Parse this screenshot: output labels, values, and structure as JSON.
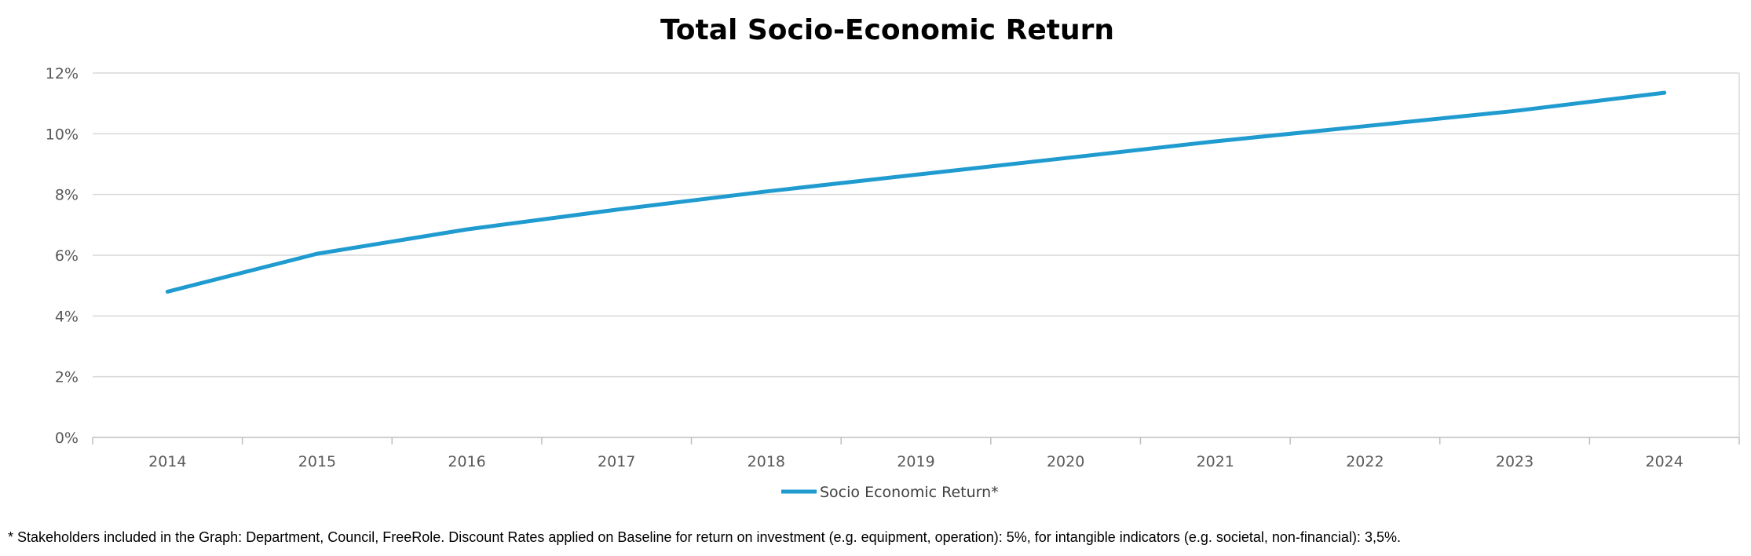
{
  "chart_data": {
    "type": "line",
    "title": "Total Socio-Economic Return",
    "categories": [
      "2014",
      "2015",
      "2016",
      "2017",
      "2018",
      "2019",
      "2020",
      "2021",
      "2022",
      "2023",
      "2024"
    ],
    "series": [
      {
        "name": "Socio Economic Return*",
        "color": "#1f9bcf",
        "values": [
          4.8,
          6.05,
          6.85,
          7.5,
          8.1,
          8.65,
          9.2,
          9.75,
          10.25,
          10.75,
          11.35
        ]
      }
    ],
    "ylim": [
      0,
      12
    ],
    "yticks": [
      "0%",
      "2%",
      "4%",
      "6%",
      "8%",
      "10%",
      "12%"
    ],
    "ytick_values": [
      0,
      2,
      4,
      6,
      8,
      10,
      12
    ],
    "grid": true,
    "legend_position": "bottom",
    "xlabel": "",
    "ylabel": ""
  },
  "footnote": "* Stakeholders included in the Graph: Department, Council, FreeRole. Discount Rates applied on Baseline for return on investment (e.g. equipment, operation): 5%, for intangible indicators (e.g. societal, non-financial): 3,5%."
}
